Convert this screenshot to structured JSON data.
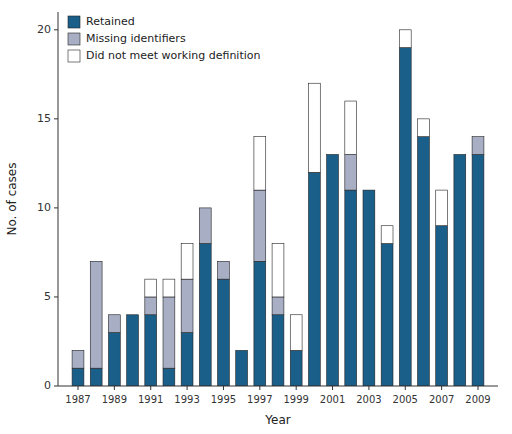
{
  "chart_data": {
    "type": "bar",
    "stacked": true,
    "x": [
      1987,
      1988,
      1989,
      1990,
      1991,
      1992,
      1993,
      1994,
      1995,
      1996,
      1997,
      1998,
      1999,
      2000,
      2001,
      2002,
      2003,
      2004,
      2005,
      2006,
      2007,
      2008,
      2009
    ],
    "series": [
      {
        "name": "Retained",
        "color": "#1a5f8a",
        "values": [
          1,
          1,
          3,
          4,
          4,
          1,
          3,
          8,
          6,
          2,
          7,
          4,
          2,
          12,
          13,
          11,
          11,
          8,
          19,
          14,
          9,
          13,
          13
        ]
      },
      {
        "name": "Missing identifiers",
        "color": "#a8afc4",
        "values": [
          1,
          6,
          1,
          0,
          1,
          4,
          3,
          2,
          1,
          0,
          4,
          1,
          0,
          0,
          0,
          2,
          0,
          0,
          0,
          0,
          0,
          0,
          1
        ]
      },
      {
        "name": "Did not meet working definition",
        "color": "#ffffff",
        "values": [
          0,
          0,
          0,
          0,
          1,
          1,
          2,
          0,
          0,
          0,
          3,
          3,
          2,
          5,
          0,
          3,
          0,
          1,
          1,
          1,
          2,
          0,
          0
        ]
      }
    ],
    "x_label": "Year",
    "y_label": "No. of cases",
    "xlim": [
      1985.9,
      2010.1
    ],
    "xticks": [
      1987,
      1989,
      1991,
      1993,
      1995,
      1997,
      1999,
      2001,
      2003,
      2005,
      2007,
      2009
    ],
    "ylim": [
      0,
      21
    ],
    "yticks": [
      0,
      5,
      10,
      15,
      20
    ],
    "grid": false,
    "legend": "upper left"
  }
}
